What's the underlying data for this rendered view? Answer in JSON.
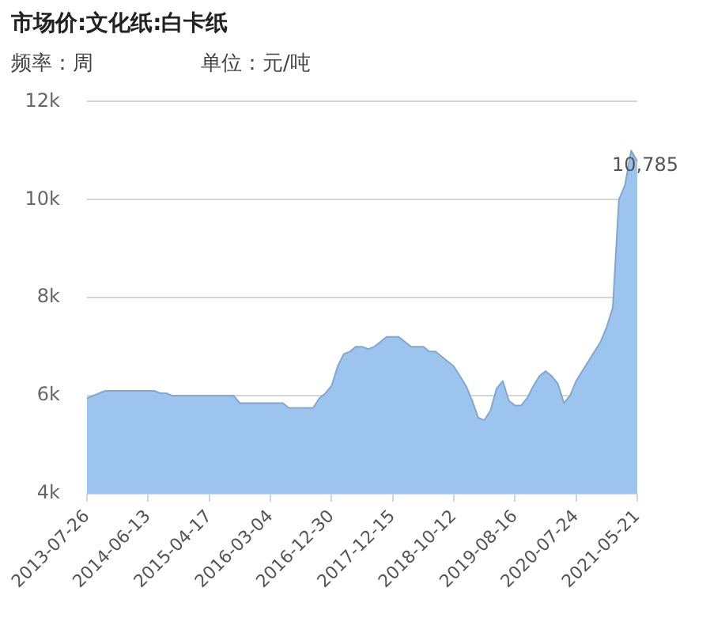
{
  "chart_data": {
    "type": "area",
    "title": "市场价:文化纸:白卡纸",
    "subtitle": "频率：周",
    "annotations": [
      "单位：元/吨"
    ],
    "categories": [
      "2013-07-26",
      null,
      null,
      null,
      null,
      null,
      null,
      null,
      null,
      null,
      "2014-06-13",
      null,
      null,
      null,
      null,
      null,
      null,
      null,
      null,
      null,
      "2015-04-17",
      null,
      null,
      null,
      null,
      null,
      null,
      null,
      null,
      null,
      "2016-03-04",
      null,
      null,
      null,
      null,
      null,
      null,
      null,
      null,
      null,
      "2016-12-30",
      null,
      null,
      null,
      null,
      null,
      null,
      null,
      null,
      null,
      "2017-12-15",
      null,
      null,
      null,
      null,
      null,
      null,
      null,
      null,
      null,
      "2018-10-12",
      null,
      null,
      null,
      null,
      null,
      null,
      null,
      null,
      null,
      "2019-08-16",
      null,
      null,
      null,
      null,
      null,
      null,
      null,
      null,
      null,
      "2020-07-24",
      null,
      null,
      null,
      null,
      null,
      null,
      null,
      null,
      null,
      "2021-05-21"
    ],
    "values": [
      5950,
      6000,
      6050,
      6100,
      6100,
      6100,
      6100,
      6100,
      6100,
      6100,
      6100,
      6100,
      6050,
      6050,
      6000,
      6000,
      6000,
      6000,
      6000,
      6000,
      6000,
      6000,
      6000,
      6000,
      6000,
      5850,
      5850,
      5850,
      5850,
      5850,
      5850,
      5850,
      5850,
      5750,
      5750,
      5750,
      5750,
      5750,
      5950,
      6050,
      6200,
      6600,
      6850,
      6900,
      7000,
      7000,
      6950,
      7000,
      7100,
      7200,
      7200,
      7200,
      7100,
      7000,
      7000,
      7000,
      6900,
      6900,
      6800,
      6700,
      6600,
      6400,
      6200,
      5900,
      5550,
      5500,
      5700,
      6150,
      6300,
      5900,
      5800,
      5800,
      5950,
      6200,
      6400,
      6500,
      6400,
      6250,
      5850,
      6000,
      6300,
      6500,
      6700,
      6900,
      7100,
      7400,
      7800,
      10000,
      10300,
      11000,
      10785
    ],
    "value_labels": [
      null,
      null,
      null,
      null,
      null,
      null,
      null,
      null,
      null,
      null,
      null,
      null,
      null,
      null,
      null,
      null,
      null,
      null,
      null,
      null,
      null,
      null,
      null,
      null,
      null,
      null,
      null,
      null,
      null,
      null,
      null,
      null,
      null,
      null,
      null,
      null,
      null,
      null,
      null,
      null,
      null,
      null,
      null,
      null,
      null,
      null,
      null,
      null,
      null,
      null,
      null,
      null,
      null,
      null,
      null,
      null,
      null,
      null,
      null,
      null,
      null,
      null,
      null,
      null,
      null,
      null,
      null,
      null,
      null,
      null,
      null,
      null,
      null,
      null,
      null,
      null,
      null,
      null,
      null,
      null,
      null,
      null,
      null,
      null,
      null,
      null,
      null,
      null,
      null,
      null,
      "10,785"
    ],
    "color": "#9cc4ef",
    "ylim": [
      4000,
      12000
    ],
    "yticks": [
      {
        "value": 4000,
        "label": "4k"
      },
      {
        "value": 6000,
        "label": "6k"
      },
      {
        "value": 8000,
        "label": "8k"
      },
      {
        "value": 10000,
        "label": "10k"
      },
      {
        "value": 12000,
        "label": "12k"
      }
    ],
    "grid": "y"
  }
}
